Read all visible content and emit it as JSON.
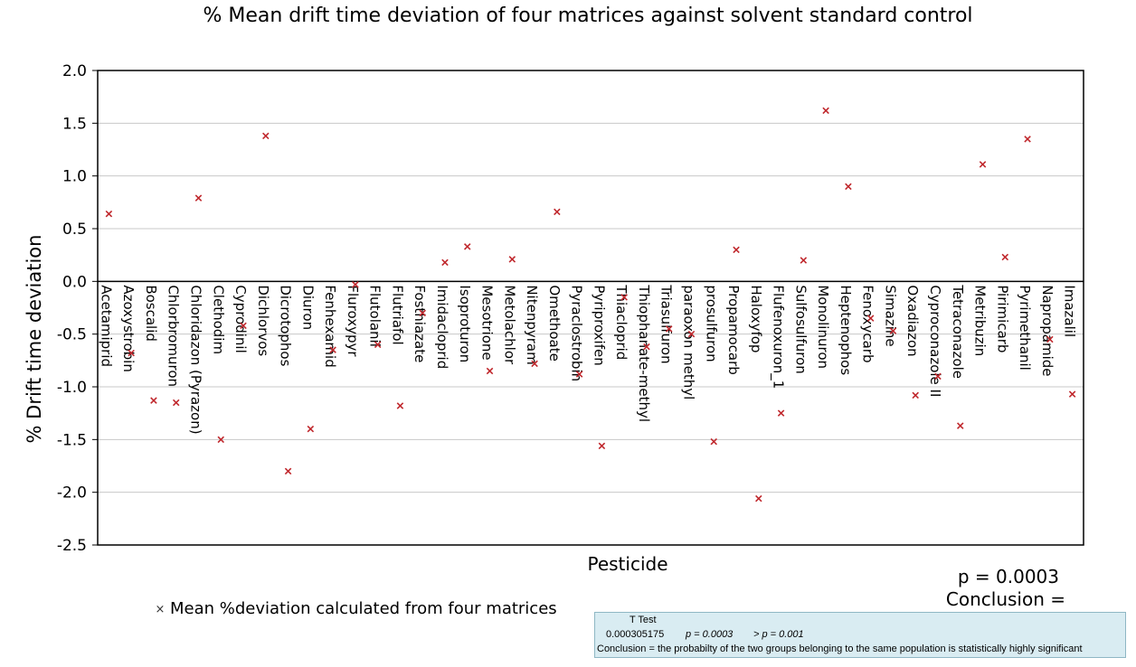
{
  "chart_data": {
    "type": "scatter",
    "title": "% Mean drift time deviation of four matrices against solvent standard control",
    "xlabel": "Pesticide",
    "ylabel": "% Drift time deviation",
    "ylim": [
      -2.5,
      2.0
    ],
    "yticks": [
      "2.0",
      "1.5",
      "1.0",
      "0.5",
      "0.0",
      "-0.5",
      "-1.0",
      "-1.5",
      "-2.0",
      "-2.5"
    ],
    "grid": true,
    "marker_color": "#c0282d",
    "categories": [
      "Acetamiprid",
      "Azoxystrobin",
      "Boscalid",
      "Chlorbromuron",
      "Chloridazon (Pyrazon)",
      "Clethodim",
      "Cyprodinil",
      "Dichlorvos",
      "Dicrotophos",
      "Diuron",
      "Fenhexamid",
      "Fluroxypyr",
      "Flutolanil",
      "Flutriafol",
      "Fosthiazate",
      "Imidacloprid",
      "Isoproturon",
      "Mesotrione",
      "Metolachlor",
      "Nitenpyram",
      "Omethoate",
      "Pyraclostrobin",
      "Pyriproxifen",
      "Thiacloprid",
      "Thiophanate-methyl",
      "Triasulfuron",
      "paraoxon methyl",
      "prosulfuron",
      "Propamocarb",
      "Haloxyfop",
      "Flufenoxuron_1",
      "Sulfosulfuron",
      "Monolinuron",
      "Heptenophos",
      "Fenoxycarb",
      "Simazine",
      "Oxadiazon",
      "Cyproconazole II",
      "Tetraconazole",
      "Metribuzin",
      "Pirimicarb",
      "Pyrimethanil",
      "Napropamide",
      "Imazalil"
    ],
    "series": [
      {
        "name": "Mean %deviation calculated from four matrices",
        "values": [
          0.64,
          -0.68,
          -1.13,
          -1.15,
          0.79,
          -1.5,
          -0.42,
          1.38,
          -1.8,
          -1.4,
          -0.65,
          -0.03,
          -0.6,
          -1.18,
          -0.3,
          0.18,
          0.33,
          -0.85,
          0.21,
          -0.78,
          0.66,
          -0.88,
          -1.56,
          -0.15,
          -0.62,
          -0.45,
          -0.5,
          -1.52,
          0.3,
          -2.06,
          -1.25,
          0.2,
          1.62,
          0.9,
          -0.35,
          -0.47,
          -1.08,
          -0.9,
          -1.37,
          1.11,
          0.23,
          1.35,
          -0.55,
          -1.07
        ]
      }
    ],
    "legend": "bottom-left"
  },
  "annotations": {
    "p_value": "p = 0.0003",
    "conclusion": "Conclusion ="
  },
  "ttest": {
    "title": "T Test",
    "raw_value": "0.000305175",
    "p_text": "p = 0.0003",
    "threshold": "> p = 0.001",
    "conclusion": "Conclusion = the probabilty of the two groups belonging to the same population is statistically highly significant"
  }
}
